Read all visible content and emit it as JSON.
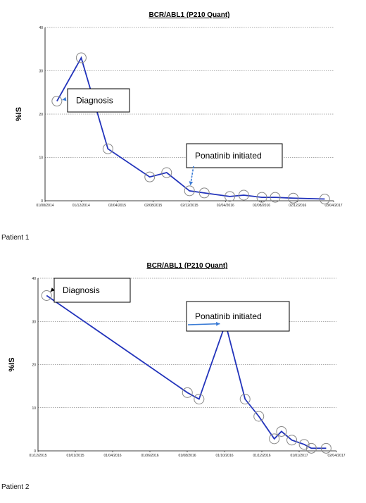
{
  "colors": {
    "line": "#2233bb",
    "marker": "#888888",
    "grid": "#555555",
    "arrow_blue": "#3a7bd5",
    "arrow_black": "#000000"
  },
  "captions": [
    "Patient 1",
    "Patient 2"
  ],
  "chart_data": [
    {
      "type": "line",
      "title": "BCR/ABL1 (P210 Quant)",
      "xlabel": "",
      "ylabel": "%IS",
      "ylim": [
        0,
        40
      ],
      "yticks": [
        "0",
        "10",
        "20",
        "30",
        "40"
      ],
      "xticks": [
        "01/08/2014",
        "01/12/2014",
        "02/04/2015",
        "02/08/2015",
        "02/12/2015",
        "02/04/2016",
        "02/08/2016",
        "02/12/2016",
        "03/04/2017"
      ],
      "grid": true,
      "series": [
        {
          "x": [
            "2014-09-10",
            "2014-12-01",
            "2015-03-01",
            "2015-07-20",
            "2015-09-15",
            "2015-12-01",
            "2016-01-20",
            "2016-04-15",
            "2016-06-01",
            "2016-08-01",
            "2016-09-15",
            "2016-11-15",
            "2017-03-01"
          ],
          "y": [
            23,
            33,
            12,
            5.5,
            6.5,
            2.3,
            1.8,
            1.0,
            1.3,
            0.8,
            0.8,
            0.6,
            0.4
          ]
        }
      ],
      "annotations": [
        {
          "text": "Diagnosis",
          "point_index": 0,
          "arrow": "blue"
        },
        {
          "text": "Ponatinib initiated",
          "point_index": 5,
          "arrow": "blue"
        }
      ]
    },
    {
      "type": "line",
      "title": "BCR/ABL1 (P210 Quant)",
      "xlabel": "",
      "ylabel": "%IS",
      "ylim": [
        0,
        40
      ],
      "yticks": [
        "0",
        "10",
        "20",
        "30",
        "40"
      ],
      "xticks": [
        "01/12/2015",
        "01/01/2015",
        "01/04/2016",
        "01/06/2016",
        "01/08/2016",
        "01/10/2016",
        "01/12/2016",
        "01/01/2017",
        "02/04/2017"
      ],
      "grid": true,
      "series": [
        {
          "x": [
            "2015-01-01",
            "2016-02-15",
            "2016-03-20",
            "2016-06-05",
            "2016-08-01",
            "2016-09-10",
            "2016-10-25",
            "2016-11-15",
            "2016-12-15",
            "2017-01-20",
            "2017-02-10",
            "2017-03-25"
          ],
          "y": [
            36,
            13.5,
            12,
            29.5,
            12,
            8,
            2.8,
            4.5,
            2.5,
            1.5,
            0.6,
            0.6
          ]
        }
      ],
      "annotations": [
        {
          "text": "Diagnosis",
          "point_index": 0,
          "arrow": "black"
        },
        {
          "text": "Ponatinib initiated",
          "point_index": 3,
          "arrow": "blue"
        }
      ]
    }
  ]
}
